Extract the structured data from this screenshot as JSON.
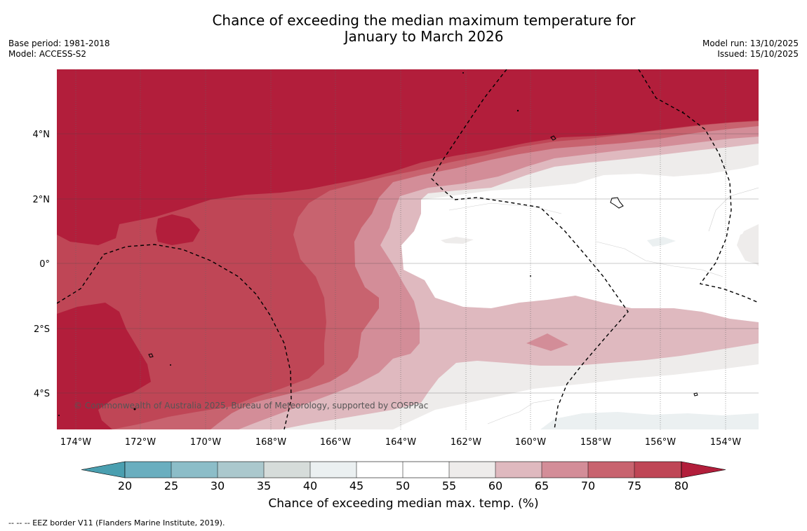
{
  "title": {
    "line1": "Chance of exceeding the median maximum temperature for",
    "line2": "January to March 2026"
  },
  "meta_left": {
    "base_period": "Base period: 1981-2018",
    "model": "Model: ACCESS-S2"
  },
  "meta_right": {
    "model_run": "Model run: 13/10/2025",
    "issued": "Issued: 15/10/2025"
  },
  "map": {
    "lon_ticks": [
      "174°W",
      "172°W",
      "170°W",
      "168°W",
      "166°W",
      "164°W",
      "162°W",
      "160°W",
      "158°W",
      "156°W",
      "154°W"
    ],
    "lat_ticks": [
      "4°N",
      "2°N",
      "0°",
      "2°S",
      "4°S"
    ],
    "copyright": "© Commonwealth of Australia 2025, Bureau of Meteorology, supported by COSPPac"
  },
  "colorbar": {
    "ticks": [
      "20",
      "25",
      "30",
      "35",
      "40",
      "45",
      "50",
      "55",
      "60",
      "65",
      "70",
      "75",
      "80"
    ],
    "label": "Chance of exceeding median max. temp. (%)",
    "colors": {
      "below20": "#4a9fb0",
      "c20_25": "#6aaebf",
      "c25_30": "#8cbdc8",
      "c30_35": "#abc8cd",
      "c35_40": "#d6dcda",
      "c40_45": "#ebf0f1",
      "c45_50": "#ffffff",
      "c50_55": "#ffffff",
      "c55_60": "#eeeceb",
      "c60_65": "#dfb9bf",
      "c65_70": "#d38d98",
      "c70_75": "#c8636f",
      "c75_80": "#bf4656",
      "above80": "#b21e3b"
    }
  },
  "footer": {
    "eez_legend": "--  --  -- EEZ border V11 (Flanders Marine Institute, 2019)."
  }
}
